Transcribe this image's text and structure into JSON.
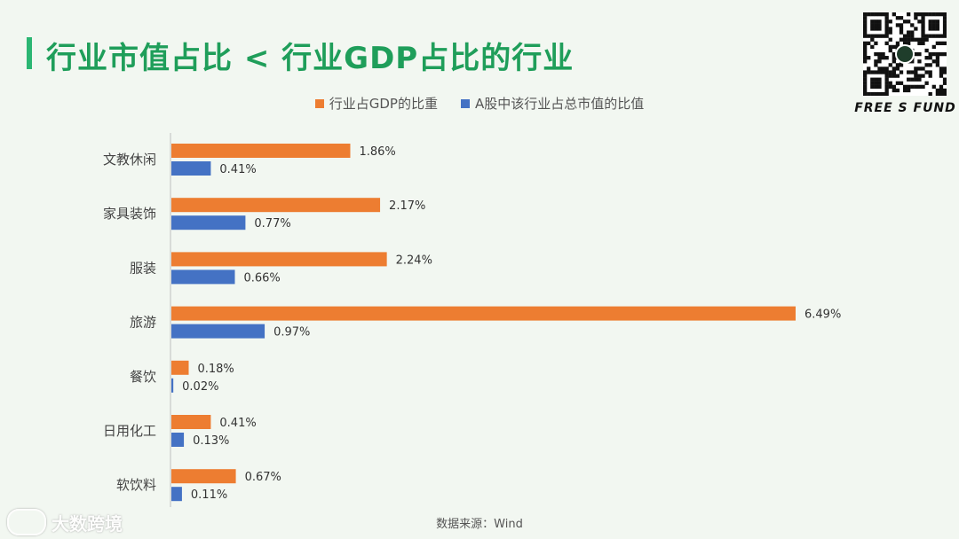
{
  "title": "行业市值占比 < 行业GDP占比的行业",
  "source": "数据来源：Wind",
  "brand": "FREE S FUND",
  "watermark": "大数跨境",
  "colors": {
    "gdp": "#ed7d31",
    "mktcap": "#4472c4",
    "title": "#1f9e5a",
    "accent": "#2bb673"
  },
  "chart_data": {
    "type": "bar",
    "orientation": "horizontal",
    "categories": [
      "文教休闲",
      "家具装饰",
      "服装",
      "旅游",
      "餐饮",
      "日用化工",
      "软饮料"
    ],
    "series": [
      {
        "name": "行业占GDP的比重",
        "values": [
          1.86,
          2.17,
          2.24,
          6.49,
          0.18,
          0.41,
          0.67
        ],
        "labels": [
          "1.86%",
          "2.17%",
          "2.24%",
          "6.49%",
          "0.18%",
          "0.41%",
          "0.67%"
        ]
      },
      {
        "name": "A股中该行业占总市值的比值",
        "values": [
          0.41,
          0.77,
          0.66,
          0.97,
          0.02,
          0.13,
          0.11
        ],
        "labels": [
          "0.41%",
          "0.77%",
          "0.66%",
          "0.97%",
          "0.02%",
          "0.13%",
          "0.11%"
        ]
      }
    ],
    "legend_position": "top",
    "grid": false
  }
}
